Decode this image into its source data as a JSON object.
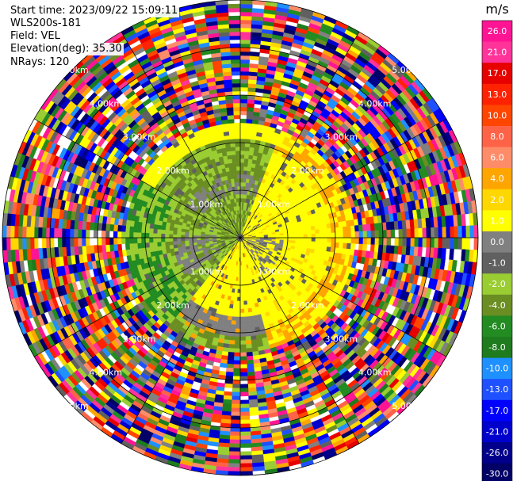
{
  "header": {
    "start_time": "Start time: 2023/09/22 15:09:11",
    "instrument": "WLS200s-181",
    "field": "Field: VEL",
    "elevation": "Elevation(deg): 35.30",
    "nrays": "NRays: 120"
  },
  "chart_data": {
    "type": "heatmap",
    "projection": "polar (PPI)",
    "field": "VEL",
    "nrays": 120,
    "range_rings_km": [
      1,
      2,
      3,
      4,
      5
    ],
    "ring_labels": [
      "1.00km",
      "2.00km",
      "3.00km",
      "4.00km",
      "5.00km"
    ],
    "colorbar": {
      "unit": "m/s",
      "ticks": [
        26.0,
        21.0,
        17.0,
        13.0,
        10.0,
        8.0,
        6.0,
        4.0,
        2.0,
        1.0,
        0.0,
        -1.0,
        -2.0,
        -4.0,
        -6.0,
        -8.0,
        -10.0,
        -13.0,
        -17.0,
        -21.0,
        -26.0,
        -30.0
      ],
      "tick_labels": [
        "26.0",
        "21.0",
        "17.0",
        "13.0",
        "10.0",
        "8.0",
        "6.0",
        "4.0",
        "2.0",
        "1.0",
        "0.0",
        "-1.0",
        "-2.0",
        "-4.0",
        "-6.0",
        "-8.0",
        "-10.0",
        "-13.0",
        "-17.0",
        "-21.0",
        "-26.0",
        "-30.0"
      ],
      "colors": [
        "#ff1493",
        "#ff3399",
        "#e60000",
        "#ff2200",
        "#ff4500",
        "#ff6347",
        "#ff8c69",
        "#ffa500",
        "#ffd700",
        "#ffff00",
        "#808080",
        "#606060",
        "#9acd32",
        "#6b8e23",
        "#228b22",
        "#1e7b1e",
        "#1e90ff",
        "#1e50ff",
        "#0000ff",
        "#0000cd",
        "#00008b",
        "#000066"
      ]
    },
    "summary": "Near-field returns (<2.5 km) dominated by +1 to +4 m/s (yellow/orange) on the east/south side and -1 to -6 m/s (green/gray) on the west/north side; beyond ~2.5 km noise spans the full velocity range."
  }
}
